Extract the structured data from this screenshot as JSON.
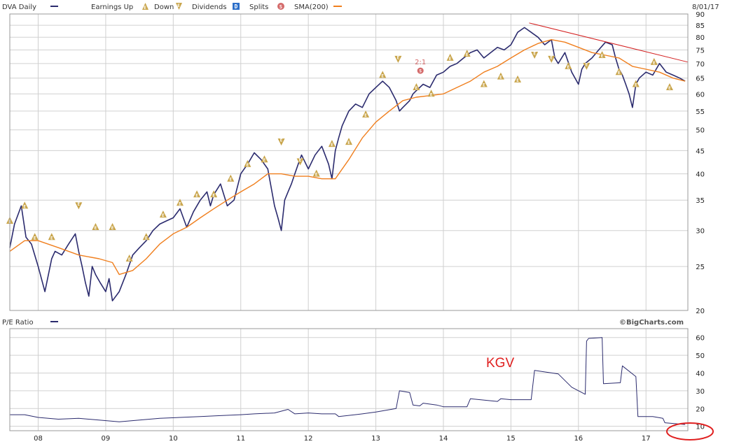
{
  "legend": {
    "symbol": "DVA",
    "series_label": "DVA Daily",
    "earnings_up_label": "Earnings Up",
    "earnings_down_label": "Down",
    "dividends_label": "Dividends",
    "dividends_icon": "D",
    "splits_label": "Splits",
    "splits_icon": "S",
    "sma_label": "SMA(200)",
    "date": "8/01/17"
  },
  "lower_panel": {
    "label": "P/E Ratio",
    "brand": "©BigCharts.com",
    "annotation": "KGV"
  },
  "colors": {
    "price": "#2b2b6e",
    "sma": "#f07f1e",
    "trendline": "#d42020",
    "earnings": "#c8a44a",
    "split": "#d46a6a",
    "pe": "#2b2b6e",
    "annotation": "#e02020"
  },
  "chart_data": [
    {
      "type": "line",
      "name": "price",
      "log_scale": true,
      "ylim": [
        20,
        90
      ],
      "xlim": [
        2007.58,
        2017.62
      ],
      "y_ticks": [
        20,
        25,
        30,
        35,
        40,
        45,
        50,
        55,
        60,
        65,
        70,
        75,
        80,
        85,
        90
      ],
      "x_ticks": [
        {
          "x": 2008,
          "label": "08"
        },
        {
          "x": 2009,
          "label": "09"
        },
        {
          "x": 2010,
          "label": "10"
        },
        {
          "x": 2011,
          "label": "11"
        },
        {
          "x": 2012,
          "label": "12"
        },
        {
          "x": 2013,
          "label": "13"
        },
        {
          "x": 2014,
          "label": "14"
        },
        {
          "x": 2015,
          "label": "15"
        },
        {
          "x": 2016,
          "label": "16"
        },
        {
          "x": 2017,
          "label": "17"
        }
      ],
      "series": [
        {
          "name": "DVA Daily",
          "x": [
            2007.58,
            2007.65,
            2007.75,
            2007.82,
            2007.9,
            2008.0,
            2008.1,
            2008.2,
            2008.25,
            2008.35,
            2008.45,
            2008.55,
            2008.6,
            2008.65,
            2008.7,
            2008.75,
            2008.8,
            2008.85,
            2008.92,
            2009.0,
            2009.05,
            2009.1,
            2009.2,
            2009.3,
            2009.4,
            2009.5,
            2009.6,
            2009.7,
            2009.8,
            2009.9,
            2010.0,
            2010.1,
            2010.2,
            2010.3,
            2010.4,
            2010.5,
            2010.55,
            2010.6,
            2010.7,
            2010.8,
            2010.9,
            2011.0,
            2011.1,
            2011.2,
            2011.3,
            2011.4,
            2011.5,
            2011.55,
            2011.6,
            2011.65,
            2011.7,
            2011.75,
            2011.8,
            2011.85,
            2011.9,
            2012.0,
            2012.1,
            2012.2,
            2012.3,
            2012.35,
            2012.4,
            2012.45,
            2012.5,
            2012.6,
            2012.7,
            2012.8,
            2012.9,
            2013.0,
            2013.1,
            2013.2,
            2013.3,
            2013.35,
            2013.4,
            2013.45,
            2013.5,
            2013.55,
            2013.6,
            2013.7,
            2013.8,
            2013.9,
            2014.0,
            2014.1,
            2014.2,
            2014.3,
            2014.4,
            2014.5,
            2014.6,
            2014.7,
            2014.8,
            2014.9,
            2015.0,
            2015.1,
            2015.2,
            2015.3,
            2015.4,
            2015.5,
            2015.6,
            2015.65,
            2015.7,
            2015.8,
            2015.9,
            2016.0,
            2016.05,
            2016.1,
            2016.2,
            2016.3,
            2016.4,
            2016.5,
            2016.55,
            2016.6,
            2016.65,
            2016.7,
            2016.75,
            2016.8,
            2016.85,
            2016.9,
            2017.0,
            2017.1,
            2017.2,
            2017.3,
            2017.4,
            2017.5,
            2017.58
          ],
          "y": [
            27.5,
            31,
            34,
            29,
            28,
            25,
            22,
            26,
            27,
            26.5,
            28,
            29.5,
            27,
            25,
            23,
            21.5,
            25,
            24,
            23,
            22,
            23.5,
            21,
            22,
            24,
            26.5,
            27.5,
            28.5,
            30,
            31,
            31.5,
            32,
            33.5,
            30.5,
            33,
            35,
            36.5,
            34,
            36,
            38,
            34,
            35,
            40,
            42,
            44.5,
            43,
            41,
            34,
            32,
            30,
            35,
            36.5,
            38,
            40,
            42,
            44,
            41,
            44,
            46,
            42,
            39,
            45,
            48,
            51,
            55,
            57,
            56,
            60,
            62,
            64,
            62,
            58,
            55,
            56,
            57,
            58,
            60,
            61,
            63,
            62,
            66,
            67,
            69,
            70,
            72,
            74,
            75,
            72,
            74,
            76,
            75,
            77,
            82,
            84,
            82,
            80,
            77,
            79,
            72,
            70,
            74,
            67,
            63,
            68,
            70,
            72,
            75,
            78,
            77,
            72,
            68,
            66,
            63,
            60,
            56,
            63,
            65,
            67,
            66,
            70,
            67,
            66,
            65,
            64
          ]
        },
        {
          "name": "SMA(200)",
          "x": [
            2007.58,
            2007.8,
            2008.0,
            2008.3,
            2008.6,
            2008.9,
            2009.1,
            2009.2,
            2009.4,
            2009.6,
            2009.8,
            2010.0,
            2010.2,
            2010.4,
            2010.6,
            2010.8,
            2011.0,
            2011.2,
            2011.4,
            2011.6,
            2011.8,
            2012.0,
            2012.2,
            2012.4,
            2012.6,
            2012.8,
            2013.0,
            2013.2,
            2013.4,
            2013.6,
            2013.8,
            2014.0,
            2014.2,
            2014.4,
            2014.6,
            2014.8,
            2015.0,
            2015.2,
            2015.4,
            2015.6,
            2015.8,
            2016.0,
            2016.2,
            2016.4,
            2016.6,
            2016.8,
            2017.0,
            2017.2,
            2017.4,
            2017.58
          ],
          "y": [
            27,
            28.5,
            28.5,
            27.5,
            26.5,
            26,
            25.5,
            24,
            24.5,
            26,
            28,
            29.5,
            30.5,
            32,
            33.5,
            35,
            36.5,
            38,
            40,
            40,
            39.5,
            39.5,
            39,
            39,
            43,
            48,
            52,
            55,
            58,
            59,
            59.5,
            60,
            62,
            64,
            67,
            69,
            72,
            75,
            77.5,
            79,
            78,
            76,
            74,
            73,
            72,
            69,
            68,
            67,
            65,
            64
          ]
        },
        {
          "name": "trendline",
          "x": [
            2015.27,
            2017.62
          ],
          "y": [
            86,
            70.5
          ]
        }
      ],
      "earnings_markers": [
        {
          "x": 2007.58,
          "y": 31.5,
          "dir": "up"
        },
        {
          "x": 2007.8,
          "y": 34,
          "dir": "up"
        },
        {
          "x": 2007.95,
          "y": 29,
          "dir": "up"
        },
        {
          "x": 2008.2,
          "y": 29,
          "dir": "up"
        },
        {
          "x": 2008.6,
          "y": 34,
          "dir": "down"
        },
        {
          "x": 2008.85,
          "y": 30.5,
          "dir": "up"
        },
        {
          "x": 2009.1,
          "y": 30.5,
          "dir": "up"
        },
        {
          "x": 2009.35,
          "y": 26,
          "dir": "up"
        },
        {
          "x": 2009.6,
          "y": 29,
          "dir": "up"
        },
        {
          "x": 2009.85,
          "y": 32.5,
          "dir": "up"
        },
        {
          "x": 2010.1,
          "y": 34.5,
          "dir": "up"
        },
        {
          "x": 2010.35,
          "y": 36,
          "dir": "up"
        },
        {
          "x": 2010.6,
          "y": 36,
          "dir": "up"
        },
        {
          "x": 2010.85,
          "y": 39,
          "dir": "up"
        },
        {
          "x": 2011.1,
          "y": 42,
          "dir": "up"
        },
        {
          "x": 2011.35,
          "y": 43,
          "dir": "up"
        },
        {
          "x": 2011.6,
          "y": 47,
          "dir": "down"
        },
        {
          "x": 2011.88,
          "y": 42.5,
          "dir": "down"
        },
        {
          "x": 2012.12,
          "y": 40,
          "dir": "up"
        },
        {
          "x": 2012.35,
          "y": 46.5,
          "dir": "up"
        },
        {
          "x": 2012.6,
          "y": 47,
          "dir": "up"
        },
        {
          "x": 2012.85,
          "y": 54,
          "dir": "up"
        },
        {
          "x": 2013.1,
          "y": 66,
          "dir": "up"
        },
        {
          "x": 2013.33,
          "y": 71.5,
          "dir": "down"
        },
        {
          "x": 2013.6,
          "y": 62,
          "dir": "up"
        },
        {
          "x": 2013.82,
          "y": 60,
          "dir": "up"
        },
        {
          "x": 2014.1,
          "y": 72,
          "dir": "up"
        },
        {
          "x": 2014.35,
          "y": 73.5,
          "dir": "up"
        },
        {
          "x": 2014.6,
          "y": 63,
          "dir": "up"
        },
        {
          "x": 2014.85,
          "y": 65.5,
          "dir": "up"
        },
        {
          "x": 2015.1,
          "y": 64.5,
          "dir": "up"
        },
        {
          "x": 2015.35,
          "y": 73,
          "dir": "down"
        },
        {
          "x": 2015.6,
          "y": 71.5,
          "dir": "down"
        },
        {
          "x": 2015.85,
          "y": 69,
          "dir": "up"
        },
        {
          "x": 2016.12,
          "y": 69,
          "dir": "down"
        },
        {
          "x": 2016.35,
          "y": 73,
          "dir": "up"
        },
        {
          "x": 2016.6,
          "y": 67,
          "dir": "up"
        },
        {
          "x": 2016.85,
          "y": 63,
          "dir": "up"
        },
        {
          "x": 2017.12,
          "y": 70.5,
          "dir": "up"
        },
        {
          "x": 2017.35,
          "y": 62,
          "dir": "up"
        }
      ],
      "split_markers": [
        {
          "x": 2013.66,
          "y": 67.5,
          "label": "2:1"
        }
      ]
    },
    {
      "type": "line",
      "name": "pe",
      "ylim": [
        7.5,
        65
      ],
      "xlim": [
        2007.58,
        2017.62
      ],
      "y_ticks": [
        10,
        20,
        30,
        40,
        50,
        60
      ],
      "series": [
        {
          "name": "P/E Ratio",
          "x": [
            2007.58,
            2007.8,
            2008.0,
            2008.3,
            2008.6,
            2008.9,
            2009.2,
            2009.5,
            2009.8,
            2010.1,
            2010.4,
            2010.7,
            2011.0,
            2011.2,
            2011.5,
            2011.7,
            2011.8,
            2012.0,
            2012.2,
            2012.4,
            2012.45,
            2012.8,
            2013.0,
            2013.3,
            2013.35,
            2013.5,
            2013.55,
            2013.65,
            2013.7,
            2013.9,
            2014.0,
            2014.35,
            2014.4,
            2014.8,
            2014.85,
            2015.0,
            2015.3,
            2015.35,
            2015.7,
            2015.9,
            2016.1,
            2016.12,
            2016.15,
            2016.35,
            2016.37,
            2016.62,
            2016.65,
            2016.85,
            2016.88,
            2017.1,
            2017.25,
            2017.28,
            2017.58
          ],
          "y": [
            16.5,
            16.5,
            15,
            14,
            14.5,
            13.5,
            12.5,
            13.5,
            14.5,
            15,
            15.5,
            16,
            16.5,
            17,
            17.5,
            19.5,
            17,
            17.5,
            17,
            17,
            15.5,
            17,
            18,
            20,
            30,
            29,
            22,
            21.5,
            23,
            22,
            21,
            21,
            25.5,
            24,
            25.5,
            25,
            25,
            41.5,
            39.5,
            32,
            28,
            58,
            59.5,
            60,
            34,
            34.5,
            44,
            38,
            15.5,
            15.5,
            14.5,
            12,
            11
          ]
        }
      ]
    }
  ]
}
